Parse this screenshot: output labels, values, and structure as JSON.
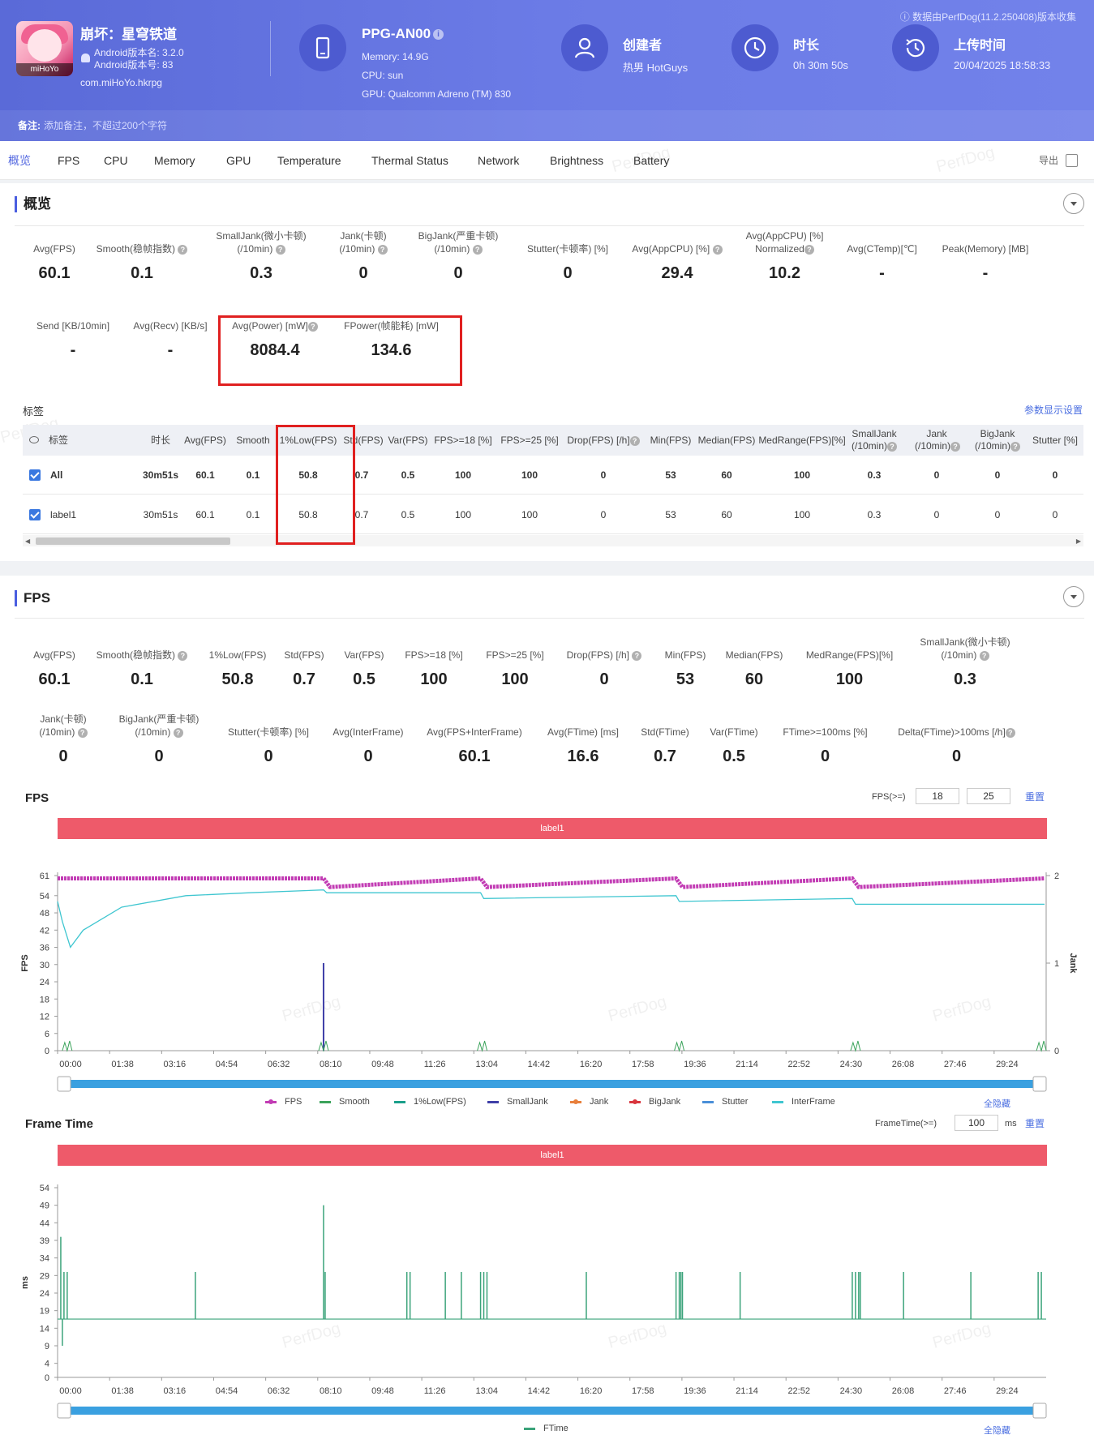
{
  "header": {
    "app_name": "崩坏：星穹铁道",
    "app_icon_text": "miHoYo",
    "android_version_name": "Android版本名: 3.2.0",
    "android_version_code": "Android版本号: 83",
    "package": "com.miHoYo.hkrpg",
    "device_name": "PPG-AN00",
    "memory": "Memory: 14.9G",
    "cpu": "CPU: sun",
    "gpu": "GPU: Qualcomm Adreno (TM) 830",
    "creator_label": "创建者",
    "creator_value": "热男 HotGuys",
    "duration_label": "时长",
    "duration_value": "0h 30m 50s",
    "upload_label": "上传时间",
    "upload_value": "20/04/2025 18:58:33",
    "version_note": "数据由PerfDog(11.2.250408)版本收集",
    "remark_label": "备注:",
    "remark_placeholder": "添加备注，不超过200个字符"
  },
  "tabs": [
    "概览",
    "FPS",
    "CPU",
    "Memory",
    "GPU",
    "Temperature",
    "Thermal Status",
    "Network",
    "Brightness",
    "Battery"
  ],
  "export_label": "导出",
  "watermark": "PerfDog",
  "overview": {
    "title": "概览",
    "row1": [
      {
        "label": "Avg(FPS)",
        "value": "60.1"
      },
      {
        "label": "Smooth(稳帧指数)",
        "value": "0.1"
      },
      {
        "label": "SmallJank(微小卡顿)",
        "label2": "(/10min)",
        "value": "0.3"
      },
      {
        "label": "Jank(卡顿)",
        "label2": "(/10min)",
        "value": "0"
      },
      {
        "label": "BigJank(严重卡顿)",
        "label2": "(/10min)",
        "value": "0"
      },
      {
        "label": "Stutter(卡顿率) [%]",
        "value": "0"
      },
      {
        "label": "Avg(AppCPU) [%]",
        "value": "29.4"
      },
      {
        "label": "Avg(AppCPU) [%]",
        "label2": "Normalized",
        "value": "10.2"
      },
      {
        "label": "Avg(CTemp)[℃]",
        "value": "-"
      },
      {
        "label": "Peak(Memory) [MB]",
        "value": "-"
      }
    ],
    "row2": [
      {
        "label": "Send [KB/10min]",
        "value": "-"
      },
      {
        "label": "Avg(Recv) [KB/s]",
        "value": "-"
      },
      {
        "label": "Avg(Power) [mW]",
        "value": "8084.4"
      },
      {
        "label": "FPower(帧能耗) [mW]",
        "value": "134.6"
      }
    ]
  },
  "tags_table": {
    "caption": "标签",
    "settings_link": "参数显示设置",
    "columns": [
      "标签",
      "时长",
      "Avg(FPS)",
      "Smooth",
      "1%Low(FPS)",
      "Std(FPS)",
      "Var(FPS)",
      "FPS>=18 [%]",
      "FPS>=25 [%]",
      "Drop(FPS) [/h]",
      "Min(FPS)",
      "Median(FPS)",
      "MedRange(FPS)[%]",
      "SmallJank",
      "Jank",
      "BigJank",
      "Stutter [%]"
    ],
    "columns_sub": {
      "SmallJank": "(/10min)",
      "Jank": "(/10min)",
      "BigJank": "(/10min)"
    },
    "rows": [
      {
        "tag": "All",
        "values": [
          "30m51s",
          "60.1",
          "0.1",
          "50.8",
          "0.7",
          "0.5",
          "100",
          "100",
          "0",
          "53",
          "60",
          "100",
          "0.3",
          "0",
          "0",
          "0"
        ]
      },
      {
        "tag": "label1",
        "values": [
          "30m51s",
          "60.1",
          "0.1",
          "50.8",
          "0.7",
          "0.5",
          "100",
          "100",
          "0",
          "53",
          "60",
          "100",
          "0.3",
          "0",
          "0",
          "0"
        ]
      }
    ]
  },
  "fps_section": {
    "title": "FPS",
    "row1": [
      {
        "label": "Avg(FPS)",
        "value": "60.1"
      },
      {
        "label": "Smooth(稳帧指数)",
        "value": "0.1"
      },
      {
        "label": "1%Low(FPS)",
        "value": "50.8"
      },
      {
        "label": "Std(FPS)",
        "value": "0.7"
      },
      {
        "label": "Var(FPS)",
        "value": "0.5"
      },
      {
        "label": "FPS>=18 [%]",
        "value": "100"
      },
      {
        "label": "FPS>=25 [%]",
        "value": "100"
      },
      {
        "label": "Drop(FPS) [/h]",
        "value": "0"
      },
      {
        "label": "Min(FPS)",
        "value": "53"
      },
      {
        "label": "Median(FPS)",
        "value": "60"
      },
      {
        "label": "MedRange(FPS)[%]",
        "value": "100"
      },
      {
        "label": "SmallJank(微小卡顿)",
        "label2": "(/10min)",
        "value": "0.3"
      }
    ],
    "row2": [
      {
        "label": "Jank(卡顿)",
        "label2": "(/10min)",
        "value": "0"
      },
      {
        "label": "BigJank(严重卡顿)",
        "label2": "(/10min)",
        "value": "0"
      },
      {
        "label": "Stutter(卡顿率) [%]",
        "value": "0"
      },
      {
        "label": "Avg(InterFrame)",
        "value": "0"
      },
      {
        "label": "Avg(FPS+InterFrame)",
        "value": "60.1"
      },
      {
        "label": "Avg(FTime) [ms]",
        "value": "16.6"
      },
      {
        "label": "Std(FTime)",
        "value": "0.7"
      },
      {
        "label": "Var(FTime)",
        "value": "0.5"
      },
      {
        "label": "FTime>=100ms [%]",
        "value": "0"
      },
      {
        "label": "Delta(FTime)>100ms [/h]",
        "value": "0"
      }
    ]
  },
  "fps_chart_ctrl": {
    "label": "FPS(>=)",
    "v1": "18",
    "v2": "25",
    "reset": "重置",
    "band": "label1",
    "hide_all": "全隐藏"
  },
  "ftime_chart_ctrl": {
    "label": "FrameTime(>=)",
    "v1": "100",
    "unit": "ms",
    "reset": "重置",
    "band": "label1",
    "hide_all": "全隐藏"
  },
  "chart_data": [
    {
      "type": "line",
      "title": "FPS",
      "ylabel": "FPS",
      "y2label": "Jank",
      "ylim": [
        0,
        61
      ],
      "y2lim": [
        0,
        2
      ],
      "yticks": [
        0,
        6,
        12,
        18,
        24,
        30,
        36,
        42,
        48,
        54,
        61
      ],
      "y2ticks": [
        0,
        1,
        2
      ],
      "x_ticks": [
        "00:00",
        "01:38",
        "03:16",
        "04:54",
        "06:32",
        "08:10",
        "09:48",
        "11:26",
        "13:04",
        "14:42",
        "16:20",
        "17:58",
        "19:36",
        "21:14",
        "22:52",
        "24:30",
        "26:08",
        "27:46",
        "29:24"
      ],
      "legend": [
        "FPS",
        "Smooth",
        "1%Low(FPS)",
        "SmallJank",
        "Jank",
        "BigJank",
        "Stutter",
        "InterFrame"
      ],
      "legend_colors": [
        "#c23cb4",
        "#3ba35b",
        "#1a9f8a",
        "#3f3fa8",
        "#e8803c",
        "#d9363e",
        "#4a8fd8",
        "#3fc6d0"
      ],
      "series": [
        {
          "name": "FPS",
          "x_minutes": [
            0,
            8.3,
            8.5,
            13.2,
            13.4,
            19.3,
            19.5,
            24.8,
            25.0,
            30.8
          ],
          "values": [
            60,
            60,
            57,
            60,
            57,
            60,
            57,
            60,
            57,
            60
          ]
        },
        {
          "name": "1%Low(FPS)",
          "x_minutes": [
            0,
            0.15,
            0.4,
            0.8,
            2,
            4,
            6,
            8.3,
            8.4,
            13.2,
            13.3,
            19.3,
            19.4,
            24.8,
            24.9,
            30.8
          ],
          "values": [
            52,
            45,
            36,
            42,
            50,
            54,
            55,
            56,
            55,
            55,
            53,
            54,
            52,
            53,
            51,
            51
          ]
        },
        {
          "name": "SmallJank",
          "x_minutes": [
            8.3
          ],
          "values": [
            1
          ]
        }
      ]
    },
    {
      "type": "line",
      "title": "Frame Time",
      "ylabel": "ms",
      "ylim": [
        0,
        54
      ],
      "yticks": [
        0,
        4,
        9,
        14,
        19,
        24,
        29,
        34,
        39,
        44,
        49,
        54
      ],
      "x_ticks": [
        "00:00",
        "01:38",
        "03:16",
        "04:54",
        "06:32",
        "08:10",
        "09:48",
        "11:26",
        "13:04",
        "14:42",
        "16:20",
        "17:58",
        "19:36",
        "21:14",
        "22:52",
        "24:30",
        "26:08",
        "27:46",
        "29:24"
      ],
      "legend": [
        "FTime"
      ],
      "legend_colors": [
        "#3ba37a"
      ],
      "series": [
        {
          "name": "FTime",
          "baseline": 16.6,
          "spikes_minutes": [
            0.1,
            0.2,
            0.3,
            4.3,
            8.3,
            8.35,
            10.9,
            11.0,
            12.1,
            12.6,
            13.2,
            13.3,
            13.4,
            16.5,
            19.3,
            19.4,
            19.45,
            19.5,
            21.3,
            24.8,
            24.9,
            25.0,
            25.05,
            26.4,
            28.5,
            30.6,
            30.7
          ],
          "spike_values": [
            40,
            30,
            30,
            30,
            49,
            30,
            30,
            30,
            30,
            30,
            30,
            30,
            30,
            30,
            30,
            30,
            30,
            30,
            30,
            30,
            30,
            30,
            30,
            30,
            30,
            30,
            30
          ]
        }
      ]
    }
  ]
}
